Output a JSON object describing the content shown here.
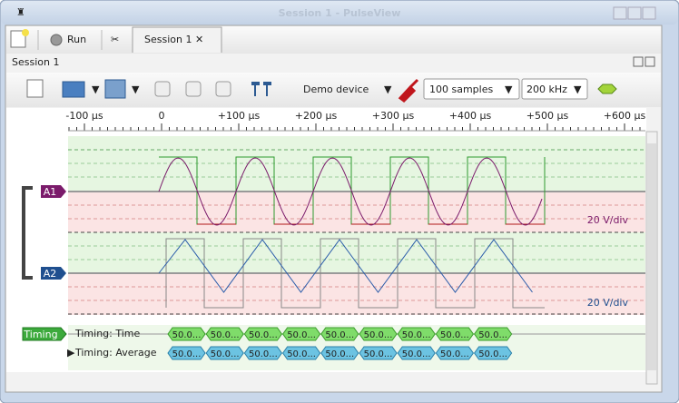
{
  "window": {
    "title": "Session 1 - PulseView"
  },
  "tabs": {
    "run": "Run",
    "session": "Session 1"
  },
  "session": {
    "title": "Session 1"
  },
  "toolbar": {
    "device": "Demo device",
    "samples": "100 samples",
    "rate": "200 kHz"
  },
  "ruler": {
    "labels": [
      "-100 µs",
      "0",
      "+100 µs",
      "+200 µs",
      "+300 µs",
      "+400 µs",
      "+500 µs",
      "+600 µs"
    ]
  },
  "traces": [
    {
      "label": "A1",
      "scale": "20 V/div"
    },
    {
      "label": "A2",
      "scale": "20 V/div"
    }
  ],
  "decoder": {
    "label": "Timing",
    "rows": [
      {
        "name": "Timing: Time",
        "annotations": [
          "50.0...",
          "50.0...",
          "50.0...",
          "50.0...",
          "50.0...",
          "50.0...",
          "50.0...",
          "50.0...",
          "50.0..."
        ]
      },
      {
        "name": "Timing: Average",
        "annotations": [
          "50.0...",
          "50.0...",
          "50.0...",
          "50.0...",
          "50.0...",
          "50.0...",
          "50.0...",
          "50.0...",
          "50.0..."
        ]
      }
    ]
  }
}
